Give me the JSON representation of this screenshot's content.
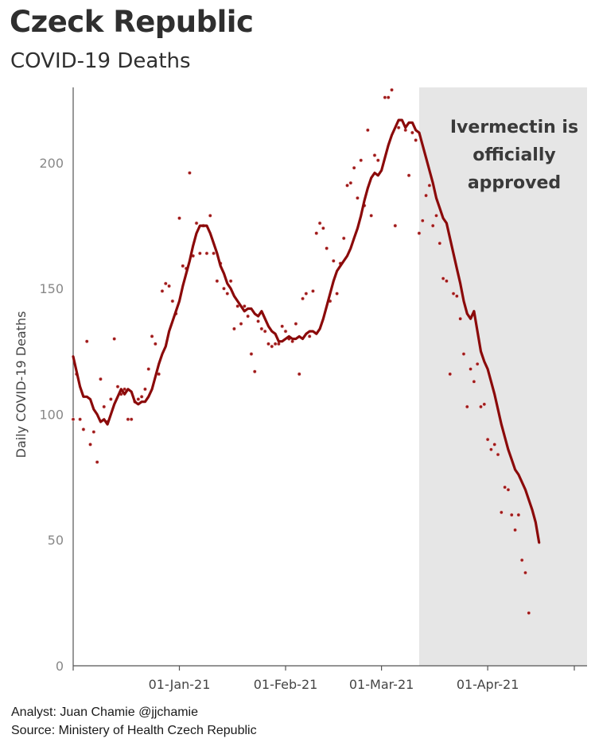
{
  "header": {
    "title": "Czeck Republic",
    "subtitle": "COVID-19 Deaths"
  },
  "footer": {
    "analyst": "Analyst: Juan Chamie @jjchamie",
    "source": "Source: Ministery of Health Czech Republic"
  },
  "chart_data": {
    "type": "line",
    "title": "Czeck Republic",
    "subtitle": "COVID-19 Deaths",
    "xlabel": "",
    "ylabel": "Daily COVID-19 Deaths",
    "x_ticks": [
      "01-Jan-21",
      "01-Feb-21",
      "01-Mar-21",
      "01-Apr-21"
    ],
    "y_ticks": [
      0,
      50,
      100,
      150,
      200
    ],
    "ylim": [
      0,
      230
    ],
    "xlim": [
      "2020-12-01",
      "2021-04-30"
    ],
    "grid": false,
    "colors": {
      "line": "#8b0a0a",
      "points": "#9e1b1b",
      "shade": "#e6e6e6",
      "axis": "#555555",
      "tick_text": "#888888"
    },
    "shaded_region": {
      "x_start": "2021-03-12",
      "x_end": "2021-04-30",
      "label": "Ivermectin is officially approved"
    },
    "series": [
      {
        "style": "line",
        "points": [
          [
            "2020-12-01",
            123
          ],
          [
            "2020-12-02",
            117
          ],
          [
            "2020-12-03",
            111
          ],
          [
            "2020-12-04",
            107
          ],
          [
            "2020-12-05",
            107
          ],
          [
            "2020-12-06",
            106
          ],
          [
            "2020-12-07",
            102
          ],
          [
            "2020-12-08",
            100
          ],
          [
            "2020-12-09",
            97
          ],
          [
            "2020-12-10",
            98
          ],
          [
            "2020-12-11",
            96
          ],
          [
            "2020-12-12",
            100
          ],
          [
            "2020-12-13",
            104
          ],
          [
            "2020-12-14",
            107
          ],
          [
            "2020-12-15",
            110
          ],
          [
            "2020-12-16",
            108
          ],
          [
            "2020-12-17",
            110
          ],
          [
            "2020-12-18",
            109
          ],
          [
            "2020-12-19",
            105
          ],
          [
            "2020-12-20",
            104
          ],
          [
            "2020-12-21",
            105
          ],
          [
            "2020-12-22",
            105
          ],
          [
            "2020-12-23",
            107
          ],
          [
            "2020-12-24",
            110
          ],
          [
            "2020-12-25",
            115
          ],
          [
            "2020-12-26",
            120
          ],
          [
            "2020-12-27",
            124
          ],
          [
            "2020-12-28",
            127
          ],
          [
            "2020-12-29",
            133
          ],
          [
            "2020-12-30",
            137
          ],
          [
            "2020-12-31",
            141
          ],
          [
            "2021-01-01",
            145
          ],
          [
            "2021-01-02",
            151
          ],
          [
            "2021-01-03",
            156
          ],
          [
            "2021-01-04",
            161
          ],
          [
            "2021-01-05",
            167
          ],
          [
            "2021-01-06",
            172
          ],
          [
            "2021-01-07",
            175
          ],
          [
            "2021-01-08",
            175
          ],
          [
            "2021-01-09",
            175
          ],
          [
            "2021-01-10",
            172
          ],
          [
            "2021-01-11",
            168
          ],
          [
            "2021-01-12",
            164
          ],
          [
            "2021-01-13",
            159
          ],
          [
            "2021-01-14",
            156
          ],
          [
            "2021-01-15",
            152
          ],
          [
            "2021-01-16",
            150
          ],
          [
            "2021-01-17",
            147
          ],
          [
            "2021-01-18",
            145
          ],
          [
            "2021-01-19",
            143
          ],
          [
            "2021-01-20",
            141
          ],
          [
            "2021-01-21",
            142
          ],
          [
            "2021-01-22",
            142
          ],
          [
            "2021-01-23",
            140
          ],
          [
            "2021-01-24",
            139
          ],
          [
            "2021-01-25",
            141
          ],
          [
            "2021-01-26",
            138
          ],
          [
            "2021-01-27",
            135
          ],
          [
            "2021-01-28",
            133
          ],
          [
            "2021-01-29",
            132
          ],
          [
            "2021-01-30",
            129
          ],
          [
            "2021-01-31",
            129
          ],
          [
            "2021-02-01",
            130
          ],
          [
            "2021-02-02",
            131
          ],
          [
            "2021-02-03",
            130
          ],
          [
            "2021-02-04",
            130
          ],
          [
            "2021-02-05",
            131
          ],
          [
            "2021-02-06",
            130
          ],
          [
            "2021-02-07",
            132
          ],
          [
            "2021-02-08",
            133
          ],
          [
            "2021-02-09",
            133
          ],
          [
            "2021-02-10",
            132
          ],
          [
            "2021-02-11",
            134
          ],
          [
            "2021-02-12",
            138
          ],
          [
            "2021-02-13",
            143
          ],
          [
            "2021-02-14",
            148
          ],
          [
            "2021-02-15",
            153
          ],
          [
            "2021-02-16",
            157
          ],
          [
            "2021-02-17",
            159
          ],
          [
            "2021-02-18",
            161
          ],
          [
            "2021-02-19",
            163
          ],
          [
            "2021-02-20",
            166
          ],
          [
            "2021-02-21",
            170
          ],
          [
            "2021-02-22",
            174
          ],
          [
            "2021-02-23",
            179
          ],
          [
            "2021-02-24",
            185
          ],
          [
            "2021-02-25",
            190
          ],
          [
            "2021-02-26",
            194
          ],
          [
            "2021-02-27",
            196
          ],
          [
            "2021-02-28",
            195
          ],
          [
            "2021-03-01",
            197
          ],
          [
            "2021-03-02",
            202
          ],
          [
            "2021-03-03",
            207
          ],
          [
            "2021-03-04",
            211
          ],
          [
            "2021-03-05",
            214
          ],
          [
            "2021-03-06",
            217
          ],
          [
            "2021-03-07",
            217
          ],
          [
            "2021-03-08",
            214
          ],
          [
            "2021-03-09",
            216
          ],
          [
            "2021-03-10",
            216
          ],
          [
            "2021-03-11",
            213
          ],
          [
            "2021-03-12",
            212
          ],
          [
            "2021-03-13",
            207
          ],
          [
            "2021-03-14",
            202
          ],
          [
            "2021-03-15",
            197
          ],
          [
            "2021-03-16",
            192
          ],
          [
            "2021-03-17",
            186
          ],
          [
            "2021-03-18",
            182
          ],
          [
            "2021-03-19",
            178
          ],
          [
            "2021-03-20",
            176
          ],
          [
            "2021-03-21",
            170
          ],
          [
            "2021-03-22",
            164
          ],
          [
            "2021-03-23",
            158
          ],
          [
            "2021-03-24",
            152
          ],
          [
            "2021-03-25",
            145
          ],
          [
            "2021-03-26",
            140
          ],
          [
            "2021-03-27",
            138
          ],
          [
            "2021-03-28",
            141
          ],
          [
            "2021-03-29",
            133
          ],
          [
            "2021-03-30",
            125
          ],
          [
            "2021-03-31",
            121
          ],
          [
            "2021-04-01",
            118
          ],
          [
            "2021-04-02",
            113
          ],
          [
            "2021-04-03",
            108
          ],
          [
            "2021-04-04",
            102
          ],
          [
            "2021-04-05",
            96
          ],
          [
            "2021-04-06",
            91
          ],
          [
            "2021-04-07",
            86
          ],
          [
            "2021-04-08",
            82
          ],
          [
            "2021-04-09",
            78
          ],
          [
            "2021-04-10",
            76
          ],
          [
            "2021-04-11",
            73
          ],
          [
            "2021-04-12",
            70
          ],
          [
            "2021-04-13",
            66
          ],
          [
            "2021-04-14",
            62
          ],
          [
            "2021-04-15",
            57
          ],
          [
            "2021-04-16",
            49
          ]
        ]
      },
      {
        "style": "points",
        "points": [
          [
            "2020-12-01",
            98
          ],
          [
            "2020-12-02",
            116
          ],
          [
            "2020-12-03",
            98
          ],
          [
            "2020-12-04",
            94
          ],
          [
            "2020-12-05",
            129
          ],
          [
            "2020-12-06",
            88
          ],
          [
            "2020-12-07",
            93
          ],
          [
            "2020-12-08",
            81
          ],
          [
            "2020-12-09",
            114
          ],
          [
            "2020-12-10",
            103
          ],
          [
            "2020-12-11",
            97
          ],
          [
            "2020-12-12",
            106
          ],
          [
            "2020-12-13",
            130
          ],
          [
            "2020-12-14",
            111
          ],
          [
            "2020-12-15",
            108
          ],
          [
            "2020-12-16",
            110
          ],
          [
            "2020-12-17",
            98
          ],
          [
            "2020-12-18",
            98
          ],
          [
            "2020-12-19",
            105
          ],
          [
            "2020-12-20",
            106
          ],
          [
            "2020-12-21",
            107
          ],
          [
            "2020-12-22",
            110
          ],
          [
            "2020-12-23",
            118
          ],
          [
            "2020-12-24",
            131
          ],
          [
            "2020-12-25",
            128
          ],
          [
            "2020-12-26",
            116
          ],
          [
            "2020-12-27",
            149
          ],
          [
            "2020-12-28",
            152
          ],
          [
            "2020-12-29",
            151
          ],
          [
            "2020-12-30",
            145
          ],
          [
            "2020-12-31",
            140
          ],
          [
            "2021-01-01",
            178
          ],
          [
            "2021-01-02",
            159
          ],
          [
            "2021-01-03",
            158
          ],
          [
            "2021-01-04",
            196
          ],
          [
            "2021-01-05",
            163
          ],
          [
            "2021-01-06",
            176
          ],
          [
            "2021-01-07",
            164
          ],
          [
            "2021-01-08",
            175
          ],
          [
            "2021-01-09",
            164
          ],
          [
            "2021-01-10",
            179
          ],
          [
            "2021-01-11",
            164
          ],
          [
            "2021-01-12",
            153
          ],
          [
            "2021-01-13",
            160
          ],
          [
            "2021-01-14",
            150
          ],
          [
            "2021-01-15",
            148
          ],
          [
            "2021-01-16",
            153
          ],
          [
            "2021-01-17",
            134
          ],
          [
            "2021-01-18",
            143
          ],
          [
            "2021-01-19",
            136
          ],
          [
            "2021-01-20",
            143
          ],
          [
            "2021-01-21",
            139
          ],
          [
            "2021-01-22",
            124
          ],
          [
            "2021-01-23",
            117
          ],
          [
            "2021-01-24",
            137
          ],
          [
            "2021-01-25",
            134
          ],
          [
            "2021-01-26",
            133
          ],
          [
            "2021-01-27",
            128
          ],
          [
            "2021-01-28",
            127
          ],
          [
            "2021-01-29",
            128
          ],
          [
            "2021-01-30",
            128
          ],
          [
            "2021-01-31",
            135
          ],
          [
            "2021-02-01",
            133
          ],
          [
            "2021-02-02",
            130
          ],
          [
            "2021-02-03",
            129
          ],
          [
            "2021-02-04",
            136
          ],
          [
            "2021-02-05",
            116
          ],
          [
            "2021-02-06",
            146
          ],
          [
            "2021-02-07",
            148
          ],
          [
            "2021-02-08",
            131
          ],
          [
            "2021-02-09",
            149
          ],
          [
            "2021-02-10",
            172
          ],
          [
            "2021-02-11",
            176
          ],
          [
            "2021-02-12",
            174
          ],
          [
            "2021-02-13",
            166
          ],
          [
            "2021-02-14",
            145
          ],
          [
            "2021-02-15",
            161
          ],
          [
            "2021-02-16",
            148
          ],
          [
            "2021-02-17",
            160
          ],
          [
            "2021-02-18",
            170
          ],
          [
            "2021-02-19",
            191
          ],
          [
            "2021-02-20",
            192
          ],
          [
            "2021-02-21",
            198
          ],
          [
            "2021-02-22",
            186
          ],
          [
            "2021-02-23",
            201
          ],
          [
            "2021-02-24",
            183
          ],
          [
            "2021-02-25",
            213
          ],
          [
            "2021-02-26",
            179
          ],
          [
            "2021-02-27",
            203
          ],
          [
            "2021-02-28",
            201
          ],
          [
            "2021-03-01",
            232
          ],
          [
            "2021-03-02",
            226
          ],
          [
            "2021-03-03",
            226
          ],
          [
            "2021-03-04",
            229
          ],
          [
            "2021-03-05",
            175
          ],
          [
            "2021-03-06",
            214
          ],
          [
            "2021-03-07",
            232
          ],
          [
            "2021-03-08",
            213
          ],
          [
            "2021-03-09",
            195
          ],
          [
            "2021-03-10",
            212
          ],
          [
            "2021-03-11",
            209
          ],
          [
            "2021-03-12",
            172
          ],
          [
            "2021-03-13",
            177
          ],
          [
            "2021-03-14",
            187
          ],
          [
            "2021-03-15",
            191
          ],
          [
            "2021-03-16",
            175
          ],
          [
            "2021-03-17",
            179
          ],
          [
            "2021-03-18",
            168
          ],
          [
            "2021-03-19",
            154
          ],
          [
            "2021-03-20",
            153
          ],
          [
            "2021-03-21",
            116
          ],
          [
            "2021-03-22",
            148
          ],
          [
            "2021-03-23",
            147
          ],
          [
            "2021-03-24",
            138
          ],
          [
            "2021-03-25",
            124
          ],
          [
            "2021-03-26",
            103
          ],
          [
            "2021-03-27",
            118
          ],
          [
            "2021-03-28",
            113
          ],
          [
            "2021-03-29",
            120
          ],
          [
            "2021-03-30",
            103
          ],
          [
            "2021-03-31",
            104
          ],
          [
            "2021-04-01",
            90
          ],
          [
            "2021-04-02",
            86
          ],
          [
            "2021-04-03",
            88
          ],
          [
            "2021-04-04",
            84
          ],
          [
            "2021-04-05",
            61
          ],
          [
            "2021-04-06",
            71
          ],
          [
            "2021-04-07",
            70
          ],
          [
            "2021-04-08",
            60
          ],
          [
            "2021-04-09",
            54
          ],
          [
            "2021-04-10",
            60
          ],
          [
            "2021-04-11",
            42
          ],
          [
            "2021-04-12",
            37
          ],
          [
            "2021-04-13",
            21
          ]
        ]
      }
    ]
  }
}
